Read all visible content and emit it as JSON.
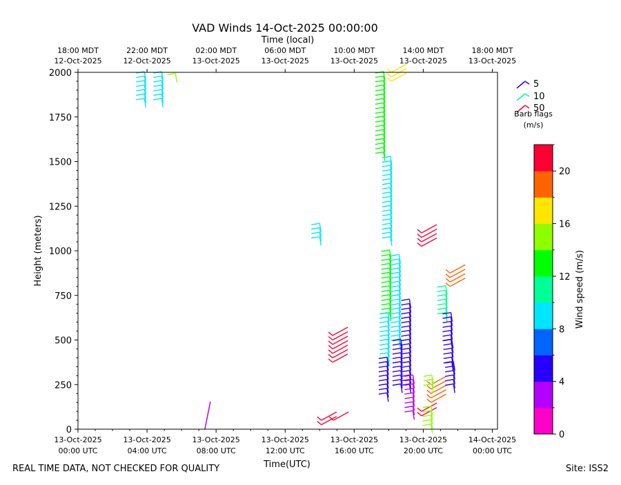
{
  "chart_data": {
    "type": "barb",
    "title": "VAD Winds 14-Oct-2025 00:00:00",
    "xlabel": "Time(UTC)",
    "top_xlabel": "Time (local)",
    "ylabel": "Height (meters)",
    "ylim": [
      0,
      2000
    ],
    "xlim_hours": [
      0,
      24.3
    ],
    "yticks": [
      {
        "value": 0,
        "label": "0"
      },
      {
        "value": 250,
        "label": "250"
      },
      {
        "value": 500,
        "label": "500"
      },
      {
        "value": 750,
        "label": "750"
      },
      {
        "value": 1000,
        "label": "1000"
      },
      {
        "value": 1250,
        "label": "1250"
      },
      {
        "value": 1500,
        "label": "1500"
      },
      {
        "value": 1750,
        "label": "1750"
      },
      {
        "value": 2000,
        "label": "2000"
      }
    ],
    "xticks": [
      {
        "hour": 0,
        "line1": "13-Oct-2025",
        "line2": "00:00 UTC"
      },
      {
        "hour": 4,
        "line1": "13-Oct-2025",
        "line2": "04:00 UTC"
      },
      {
        "hour": 8,
        "line1": "13-Oct-2025",
        "line2": "08:00 UTC"
      },
      {
        "hour": 12,
        "line1": "13-Oct-2025",
        "line2": "12:00 UTC"
      },
      {
        "hour": 16,
        "line1": "13-Oct-2025",
        "line2": "16:00 UTC"
      },
      {
        "hour": 20,
        "line1": "13-Oct-2025",
        "line2": "20:00 UTC"
      },
      {
        "hour": 24,
        "line1": "14-Oct-2025",
        "line2": "00:00 UTC"
      }
    ],
    "top_xticks": [
      {
        "hour": 0,
        "line1": "18:00 MDT",
        "line2": "12-Oct-2025"
      },
      {
        "hour": 4,
        "line1": "22:00 MDT",
        "line2": "12-Oct-2025"
      },
      {
        "hour": 8,
        "line1": "02:00 MDT",
        "line2": "13-Oct-2025"
      },
      {
        "hour": 12,
        "line1": "06:00 MDT",
        "line2": "13-Oct-2025"
      },
      {
        "hour": 16,
        "line1": "10:00 MDT",
        "line2": "13-Oct-2025"
      },
      {
        "hour": 20,
        "line1": "14:00 MDT",
        "line2": "13-Oct-2025"
      },
      {
        "hour": 24,
        "line1": "18:00 MDT",
        "line2": "13-Oct-2025"
      }
    ],
    "colorbar": {
      "label": "Wind speed (m/s)",
      "min": 0,
      "max": 22,
      "colors": [
        "#ff00c8",
        "#b400ff",
        "#2800ff",
        "#0064ff",
        "#00e6ff",
        "#00ff96",
        "#00ff00",
        "#8cff00",
        "#ffe600",
        "#ff6400",
        "#ff0032"
      ],
      "ticks": [
        {
          "value": 0,
          "label": "0"
        },
        {
          "value": 4,
          "label": "4"
        },
        {
          "value": 8,
          "label": "8"
        },
        {
          "value": 12,
          "label": "12"
        },
        {
          "value": 16,
          "label": "16"
        },
        {
          "value": 20,
          "label": "20"
        }
      ]
    },
    "barb_legend": {
      "title_line1": "Barb flags",
      "title_line2": "(m/s)",
      "entries": [
        {
          "label": "5",
          "color": "#2800ff"
        },
        {
          "label": "10",
          "color": "#00ff96"
        },
        {
          "label": "50",
          "color": "#ff0032"
        }
      ]
    },
    "clusters": [
      {
        "t": 3.85,
        "h0": 1850,
        "h1": 2000,
        "step": 25,
        "speed": 9.5,
        "lean": 0
      },
      {
        "t": 4.85,
        "h0": 1850,
        "h1": 2000,
        "step": 25,
        "speed": 9.2,
        "lean": 0
      },
      {
        "t": 5.65,
        "h0": 1990,
        "h1": 1990,
        "step": 25,
        "speed": 15,
        "lean": 0
      },
      {
        "t": 7.35,
        "h0": 0,
        "h1": 0,
        "step": 25,
        "speed": 3,
        "lean": 0,
        "ext": 40,
        "dx": 8
      },
      {
        "t": 14.0,
        "h0": 1075,
        "h1": 1150,
        "step": 25,
        "speed": 8.5,
        "lean": 0
      },
      {
        "t": 14.1,
        "h0": 25,
        "h1": 50,
        "step": 25,
        "speed": 21,
        "lean": 0
      },
      {
        "t": 14.8,
        "h0": 50,
        "h1": 50,
        "step": 25,
        "speed": 21,
        "lean": 0
      },
      {
        "t": 14.75,
        "h0": 375,
        "h1": 525,
        "step": 25,
        "speed": 21,
        "lean": 0
      },
      {
        "t": 17.7,
        "h0": 1550,
        "h1": 2000,
        "step": 25,
        "speed": 12,
        "lean": 0
      },
      {
        "t": 18.1,
        "h0": 1075,
        "h1": 1525,
        "step": 25,
        "speed": 9,
        "lean": 0
      },
      {
        "t": 18.05,
        "h0": 650,
        "h1": 1000,
        "step": 25,
        "speed": 13,
        "lean": 0
      },
      {
        "t": 17.95,
        "h0": 400,
        "h1": 650,
        "step": 25,
        "speed": 9,
        "lean": 0
      },
      {
        "t": 17.9,
        "h0": 200,
        "h1": 400,
        "step": 25,
        "speed": 5,
        "lean": 0
      },
      {
        "t": 18.15,
        "h0": 1950,
        "h1": 2000,
        "step": 25,
        "speed": 17,
        "lean": 0
      },
      {
        "t": 18.6,
        "h0": 500,
        "h1": 975,
        "step": 25,
        "speed": 9,
        "lean": 0
      },
      {
        "t": 18.7,
        "h0": 250,
        "h1": 500,
        "step": 25,
        "speed": 5,
        "lean": 0
      },
      {
        "t": 19.2,
        "h0": 250,
        "h1": 725,
        "step": 25,
        "speed": 5.5,
        "lean": 0
      },
      {
        "t": 19.4,
        "h0": 100,
        "h1": 300,
        "step": 25,
        "speed": 3.5,
        "lean": 0
      },
      {
        "t": 19.9,
        "h0": 1025,
        "h1": 1100,
        "step": 25,
        "speed": 21,
        "lean": 0
      },
      {
        "t": 19.9,
        "h0": 75,
        "h1": 100,
        "step": 25,
        "speed": 21,
        "lean": 0
      },
      {
        "t": 20.45,
        "h0": 25,
        "h1": 125,
        "step": 25,
        "speed": 15,
        "lean": 0
      },
      {
        "t": 20.45,
        "h0": 150,
        "h1": 250,
        "step": 25,
        "speed": 19,
        "lean": 0
      },
      {
        "t": 20.5,
        "h0": 250,
        "h1": 300,
        "step": 25,
        "speed": 15,
        "lean": 0
      },
      {
        "t": 21.3,
        "h0": 650,
        "h1": 800,
        "step": 25,
        "speed": 11,
        "lean": 0
      },
      {
        "t": 21.55,
        "h0": 800,
        "h1": 875,
        "step": 25,
        "speed": 18,
        "lean": 0
      },
      {
        "t": 21.6,
        "h0": 500,
        "h1": 650,
        "step": 25,
        "speed": 5,
        "lean": 0
      },
      {
        "t": 21.65,
        "h0": 375,
        "h1": 500,
        "step": 25,
        "speed": 4,
        "lean": 0
      },
      {
        "t": 21.75,
        "h0": 250,
        "h1": 375,
        "step": 25,
        "speed": 5,
        "lean": 0
      }
    ]
  },
  "footer": {
    "left": "REAL TIME DATA, NOT CHECKED FOR QUALITY",
    "right": "Site: ISS2"
  }
}
